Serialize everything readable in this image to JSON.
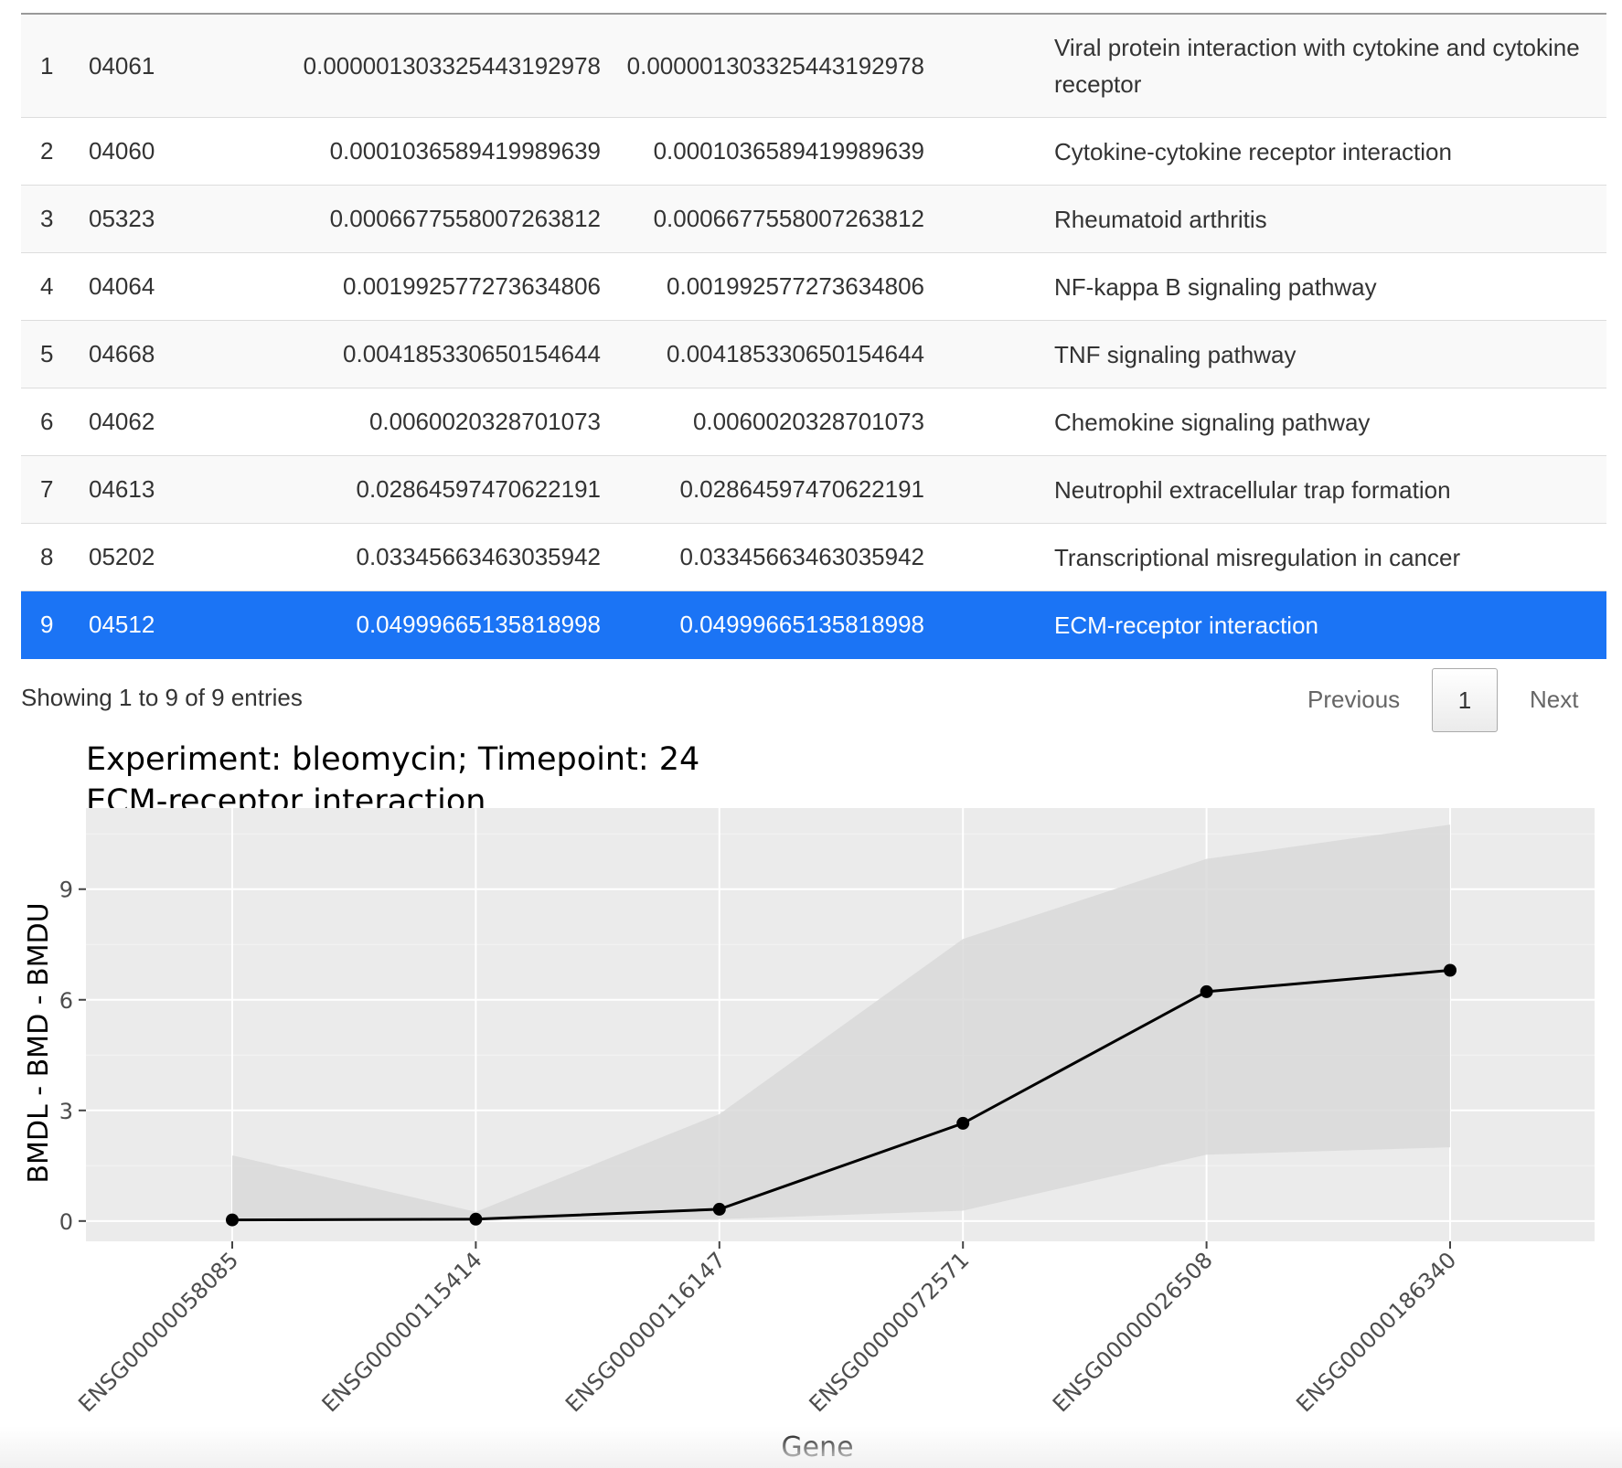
{
  "table": {
    "rows": [
      {
        "idx": "1",
        "id": "04061",
        "p1": "0.00000130332544319297​8",
        "p2": "0.00000130332544319297​8",
        "name": "Viral protein interaction with cytokine and cytokine receptor"
      },
      {
        "idx": "2",
        "id": "04060",
        "p1": "0.0001036589419989639",
        "p2": "0.0001036589419989639",
        "name": "Cytokine-cytokine receptor interaction"
      },
      {
        "idx": "3",
        "id": "05323",
        "p1": "0.0006677558007263812",
        "p2": "0.0006677558007263812",
        "name": "Rheumatoid arthritis"
      },
      {
        "idx": "4",
        "id": "04064",
        "p1": "0.001992577273634806",
        "p2": "0.001992577273634806",
        "name": "NF-kappa B signaling pathway"
      },
      {
        "idx": "5",
        "id": "04668",
        "p1": "0.004185330650154644",
        "p2": "0.004185330650154644",
        "name": "TNF signaling pathway"
      },
      {
        "idx": "6",
        "id": "04062",
        "p1": "0.0060020328701073",
        "p2": "0.0060020328701073",
        "name": "Chemokine signaling pathway"
      },
      {
        "idx": "7",
        "id": "04613",
        "p1": "0.02864597470622191",
        "p2": "0.02864597470622191",
        "name": "Neutrophil extracellular trap formation"
      },
      {
        "idx": "8",
        "id": "05202",
        "p1": "0.03345663463035942",
        "p2": "0.03345663463035942",
        "name": "Transcriptional misregulation in cancer"
      },
      {
        "idx": "9",
        "id": "04512",
        "p1": "0.04999665135818998",
        "p2": "0.04999665135818998",
        "name": "ECM-receptor interaction"
      }
    ],
    "selected_index": 9
  },
  "footer": {
    "info": "Showing 1 to 9 of 9 entries",
    "previous": "Previous",
    "current_page": "1",
    "next": "Next"
  },
  "colors": {
    "selected_row": "#1b74f5",
    "panel_bg": "#ebebeb",
    "ribbon": "#d9d9d9",
    "line": "#000000"
  },
  "chart_data": {
    "type": "line",
    "title": "Experiment: bleomycin; Timepoint: 24",
    "subtitle": "ECM-receptor interaction",
    "xlabel": "Gene",
    "ylabel": "BMDL - BMD - BMDU",
    "categories": [
      "ENSG00000058085",
      "ENSG00000115414",
      "ENSG00000116147",
      "ENSG00000072571",
      "ENSG00000026508",
      "ENSG00000186340"
    ],
    "series": [
      {
        "values": [
          0.03,
          0.05,
          0.32,
          2.65,
          6.22,
          6.8
        ]
      }
    ],
    "ribbon_lower": [
      0.0,
      0.02,
      0.05,
      0.28,
      1.8,
      2.0
    ],
    "ribbon_upper": [
      1.78,
      0.25,
      2.9,
      7.65,
      9.82,
      10.75
    ],
    "ylim": [
      -0.55,
      11.2
    ],
    "yticks": [
      0,
      3,
      6,
      9
    ],
    "grid": true
  }
}
